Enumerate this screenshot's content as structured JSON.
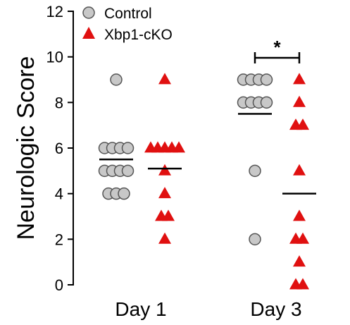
{
  "chart_data": {
    "type": "scatter",
    "ylabel": "Neurologic Score",
    "xlabel": "",
    "ylim": [
      0,
      12
    ],
    "yticks": [
      "0",
      "2",
      "4",
      "6",
      "8",
      "10",
      "12"
    ],
    "categories": [
      "Day 1",
      "Day 3"
    ],
    "legend_position": "top-left",
    "series": [
      {
        "name": "Control",
        "marker": "circle",
        "color": "#c8c8c8",
        "points": [
          {
            "category": "Day 1",
            "values": [
              9,
              6,
              6,
              6,
              6,
              5,
              5,
              5,
              5,
              4,
              4,
              4
            ]
          },
          {
            "category": "Day 3",
            "values": [
              9,
              9,
              9,
              9,
              8,
              8,
              8,
              8,
              5,
              2
            ]
          }
        ],
        "means": {
          "Day 1": 5.5,
          "Day 3": 7.5
        }
      },
      {
        "name": "Xbp1-cKO",
        "marker": "triangle",
        "color": "#e01010",
        "points": [
          {
            "category": "Day 1",
            "values": [
              9,
              6,
              6,
              6,
              6,
              6,
              5,
              4,
              3,
              3,
              2
            ]
          },
          {
            "category": "Day 3",
            "values": [
              9,
              8,
              7,
              7,
              5,
              3,
              2,
              2,
              1,
              0,
              0
            ]
          }
        ],
        "means": {
          "Day 1": 5.1,
          "Day 3": 4.0
        }
      }
    ],
    "annotations": [
      {
        "text": "*",
        "between": [
          "Control Day 3",
          "Xbp1-cKO Day 3"
        ]
      }
    ]
  }
}
